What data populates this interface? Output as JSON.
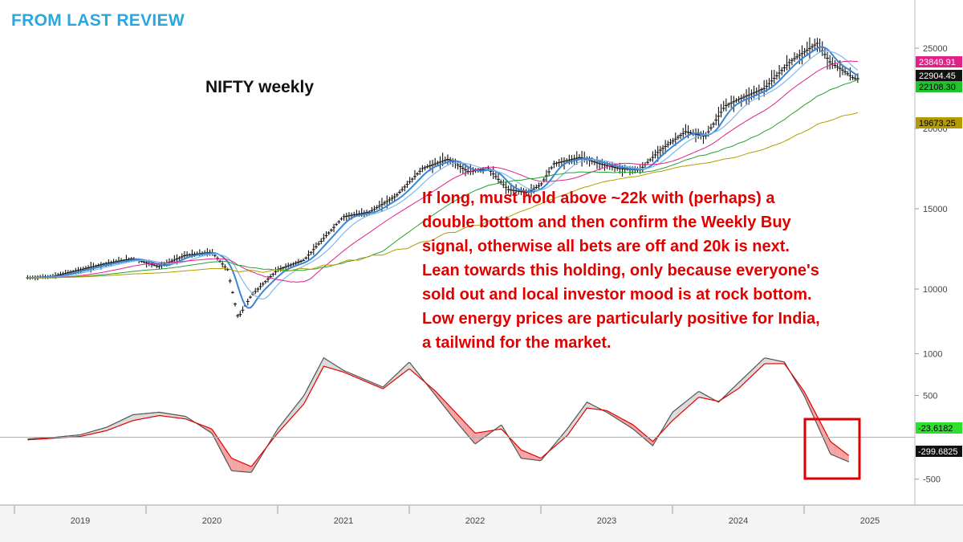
{
  "header": {
    "title": "FROM LAST REVIEW",
    "subtitle": "NIFTY weekly"
  },
  "annotation": {
    "lines": [
      "If long, must hold above ~22k with (perhaps) a",
      "double bottom and then confirm the Weekly Buy",
      "signal, otherwise all bets are off and 20k is next.",
      "Lean towards this holding, only because everyone's",
      "sold out and local investor mood is at rock bottom.",
      "Low energy prices are particularly positive for India,",
      "a tailwind for the market."
    ],
    "color": "#e00000"
  },
  "chart_data": [
    {
      "type": "line",
      "panel": "price",
      "ylim": [
        7000,
        27000
      ],
      "yticks": [
        10000,
        15000,
        20000,
        25000
      ],
      "ytick_labels": [
        "10000",
        "15000",
        "20000",
        "25000"
      ],
      "x_labels": [
        "2019",
        "2020",
        "2021",
        "2022",
        "2023",
        "2024",
        "2025"
      ],
      "x": [
        2018.6,
        2018.8,
        2019.0,
        2019.2,
        2019.4,
        2019.6,
        2019.8,
        2020.0,
        2020.12,
        2020.2,
        2020.3,
        2020.5,
        2020.7,
        2020.9,
        2021.0,
        2021.2,
        2021.4,
        2021.6,
        2021.8,
        2021.95,
        2022.1,
        2022.25,
        2022.4,
        2022.5,
        2022.6,
        2022.8,
        2022.95,
        2023.1,
        2023.25,
        2023.4,
        2023.6,
        2023.75,
        2023.9,
        2024.0,
        2024.2,
        2024.4,
        2024.6,
        2024.7,
        2024.8,
        2024.88
      ],
      "series": [
        {
          "color": "#111111",
          "values": [
            10700,
            10800,
            11200,
            11600,
            11900,
            11400,
            12100,
            12300,
            11200,
            8200,
            9600,
            11200,
            11800,
            13600,
            14500,
            14800,
            15800,
            17500,
            18100,
            17300,
            17500,
            16200,
            16000,
            16500,
            17800,
            18200,
            17800,
            17500,
            17400,
            18600,
            19800,
            19500,
            21400,
            21800,
            22500,
            24200,
            25300,
            24100,
            23600,
            23100
          ]
        }
      ],
      "tags": [
        {
          "label": "23849.91",
          "bg": "#e0218a",
          "fg": "#ffffff"
        },
        {
          "label": "22904.45",
          "bg": "#111111",
          "fg": "#ffffff"
        },
        {
          "label": "22108.30",
          "bg": "#22c12e",
          "fg": "#000000"
        },
        {
          "label": "19673.25",
          "bg": "#b39b00",
          "fg": "#000000"
        }
      ]
    },
    {
      "type": "line",
      "panel": "oscillator",
      "ylim": [
        -800,
        1100
      ],
      "yticks": [
        1000,
        500,
        -500
      ],
      "ytick_labels": [
        "1000",
        "500",
        "-500"
      ],
      "x": [
        2018.6,
        2018.8,
        2019.0,
        2019.2,
        2019.4,
        2019.6,
        2019.8,
        2020.0,
        2020.15,
        2020.3,
        2020.5,
        2020.7,
        2020.85,
        2021.0,
        2021.15,
        2021.3,
        2021.5,
        2021.7,
        2021.85,
        2022.0,
        2022.2,
        2022.35,
        2022.5,
        2022.7,
        2022.85,
        2023.0,
        2023.2,
        2023.35,
        2023.5,
        2023.7,
        2023.85,
        2024.0,
        2024.2,
        2024.35,
        2024.5,
        2024.7,
        2024.85
      ],
      "series": [
        {
          "color": "#555555",
          "values": [
            -20,
            0,
            30,
            120,
            270,
            300,
            250,
            50,
            -400,
            -420,
            100,
            500,
            950,
            800,
            700,
            600,
            900,
            500,
            200,
            -80,
            150,
            -250,
            -280,
            100,
            420,
            300,
            100,
            -100,
            300,
            550,
            420,
            650,
            950,
            900,
            500,
            -200,
            -300
          ]
        },
        {
          "color": "#e60000",
          "values": [
            -30,
            -10,
            10,
            80,
            200,
            260,
            220,
            100,
            -250,
            -350,
            50,
            400,
            850,
            780,
            680,
            580,
            820,
            550,
            300,
            50,
            100,
            -150,
            -250,
            20,
            350,
            320,
            150,
            -50,
            200,
            480,
            430,
            580,
            880,
            880,
            550,
            -50,
            -230
          ]
        }
      ],
      "tags": [
        {
          "label": "-23.6182",
          "bg": "#2ee02e",
          "fg": "#000000"
        },
        {
          "label": "-299.6825",
          "bg": "#111111",
          "fg": "#ffffff"
        }
      ]
    }
  ]
}
